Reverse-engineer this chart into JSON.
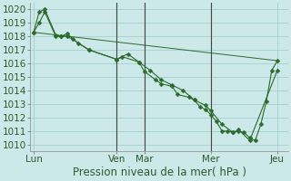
{
  "background_color": "#cce8e8",
  "grid_color": "#99cccc",
  "line_color": "#2d6a2d",
  "marker_color": "#2d6a2d",
  "xlabel": "Pression niveau de la mer( hPa )",
  "ylim": [
    1009.5,
    1020.5
  ],
  "yticks": [
    1010,
    1011,
    1012,
    1013,
    1014,
    1015,
    1016,
    1017,
    1018,
    1019,
    1020
  ],
  "day_labels": [
    "Lun",
    "Ven",
    "Mar",
    "Mer",
    "Jeu"
  ],
  "day_positions": [
    0.0,
    7.5,
    10.0,
    16.0,
    22.0
  ],
  "xlim": [
    -0.3,
    23.0
  ],
  "vline_positions": [
    7.5,
    10.0,
    16.0
  ],
  "series1_x": [
    0,
    0.5,
    1.0,
    2.0,
    2.5,
    3.0,
    3.5,
    5.0,
    7.5,
    8.0,
    9.5,
    10.0,
    11.0,
    11.5,
    12.5,
    13.0,
    14.0,
    14.5,
    15.0,
    15.5,
    16.0,
    16.5,
    17.0,
    17.5,
    18.0,
    18.5,
    19.0,
    19.5,
    20.0,
    20.5,
    21.0,
    21.5,
    22.0
  ],
  "series1_y": [
    1018.3,
    1019.8,
    1020.0,
    1018.1,
    1018.0,
    1018.0,
    1017.8,
    1017.0,
    1016.3,
    1016.5,
    1016.1,
    1015.4,
    1014.8,
    1014.5,
    1014.3,
    1013.7,
    1013.5,
    1013.3,
    1012.8,
    1012.6,
    1012.2,
    1011.7,
    1011.0,
    1011.0,
    1010.9,
    1011.0,
    1010.9,
    1010.5,
    1010.3,
    1011.5,
    1013.2,
    1015.5,
    1016.2
  ],
  "series2_x": [
    0,
    0.5,
    1.0,
    2.0,
    2.5,
    3.0,
    4.0,
    5.0,
    7.5,
    8.5,
    9.5,
    10.5,
    11.5,
    12.5,
    13.5,
    14.5,
    15.5,
    16.0,
    17.0,
    18.0,
    18.5,
    19.5,
    22.0
  ],
  "series2_y": [
    1018.3,
    1019.0,
    1019.8,
    1018.0,
    1018.0,
    1018.2,
    1017.5,
    1017.0,
    1016.3,
    1016.7,
    1016.1,
    1015.5,
    1014.8,
    1014.4,
    1014.0,
    1013.3,
    1012.9,
    1012.5,
    1011.5,
    1010.9,
    1011.1,
    1010.3,
    1015.5
  ],
  "series3_x": [
    0.0,
    22.0
  ],
  "series3_y": [
    1018.3,
    1016.2
  ],
  "fontsize": 7.5,
  "xlabel_fontsize": 8.5
}
